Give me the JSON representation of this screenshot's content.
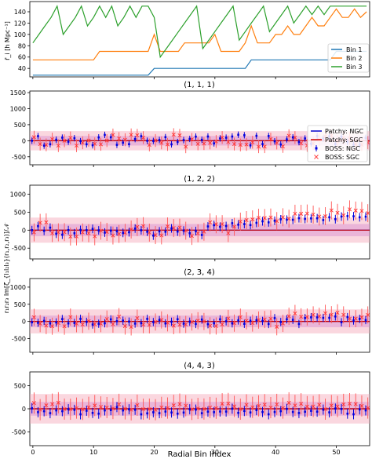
{
  "chart_data": [
    {
      "type": "line",
      "panel": "bins",
      "title": "",
      "xlabel": "",
      "ylabel": "r̄_i [h Mpc⁻¹]",
      "xlim": [
        -0.5,
        55.5
      ],
      "ylim": [
        25,
        158
      ],
      "yticks": [
        40,
        60,
        80,
        100,
        120,
        140
      ],
      "xticks": [
        0,
        10,
        20,
        30,
        40,
        50
      ],
      "show_xticklabels": false,
      "grid": false,
      "legend_position": "bottom-right",
      "x": [
        0,
        1,
        2,
        3,
        4,
        5,
        6,
        7,
        8,
        9,
        10,
        11,
        12,
        13,
        14,
        15,
        16,
        17,
        18,
        19,
        20,
        21,
        22,
        23,
        24,
        25,
        26,
        27,
        28,
        29,
        30,
        31,
        32,
        33,
        34,
        35,
        36,
        37,
        38,
        39,
        40,
        41,
        42,
        43,
        44,
        45,
        46,
        47,
        48,
        49,
        50,
        51,
        52,
        53,
        54,
        55
      ],
      "series": [
        {
          "name": "Bin 1",
          "color": "#1f77b4",
          "values": [
            28,
            28,
            28,
            28,
            28,
            28,
            28,
            28,
            28,
            28,
            28,
            28,
            28,
            28,
            28,
            28,
            28,
            28,
            28,
            28,
            40,
            40,
            40,
            40,
            40,
            40,
            40,
            40,
            40,
            40,
            40,
            40,
            40,
            40,
            40,
            40,
            55,
            55,
            55,
            55,
            55,
            55,
            55,
            55,
            55,
            55,
            55,
            55,
            55,
            55,
            70,
            70,
            70,
            70,
            70,
            70
          ]
        },
        {
          "name": "Bin 2",
          "color": "#ff7f0e",
          "values": [
            55,
            55,
            55,
            55,
            55,
            55,
            55,
            55,
            55,
            55,
            55,
            70,
            70,
            70,
            70,
            70,
            70,
            70,
            70,
            70,
            100,
            70,
            70,
            70,
            70,
            85,
            85,
            85,
            85,
            85,
            100,
            70,
            70,
            70,
            70,
            85,
            115,
            85,
            85,
            85,
            100,
            100,
            115,
            100,
            100,
            115,
            130,
            115,
            115,
            130,
            145,
            130,
            130,
            145,
            130,
            140
          ]
        },
        {
          "name": "Bin 3",
          "color": "#2ca02c",
          "values": [
            85,
            100,
            115,
            130,
            150,
            100,
            115,
            130,
            150,
            115,
            130,
            150,
            130,
            150,
            115,
            130,
            150,
            130,
            150,
            150,
            130,
            60,
            75,
            90,
            105,
            120,
            135,
            150,
            75,
            90,
            105,
            120,
            135,
            150,
            90,
            105,
            120,
            135,
            150,
            105,
            120,
            135,
            150,
            120,
            135,
            150,
            135,
            150,
            135,
            150,
            150,
            150,
            150,
            150,
            150,
            150
          ]
        }
      ]
    },
    {
      "type": "errorbar",
      "panel": "multipole",
      "title": "(1, 1, 1)",
      "xlabel": "",
      "ylabel": "r₁r₂r₃ Im[ζ_{l₁l₂l₃}(r₁,r₂,r₃)]/𝒩",
      "ylim": [
        -750,
        1550
      ],
      "yticks": [
        -500,
        0,
        500,
        1000,
        1500
      ],
      "xticks": [
        0,
        10,
        20,
        30,
        40,
        50
      ],
      "show_xticklabels": false,
      "legend_position": "right",
      "legend": [
        "Patchy: NGC",
        "Patchy: SGC",
        "BOSS: NGC",
        "BOSS: SGC"
      ],
      "ngc_values": [
        0,
        142,
        -154,
        -110,
        32,
        96,
        -31,
        79,
        -13,
        -110,
        -142,
        103,
        182,
        107,
        -128,
        -61,
        -107,
        51,
        141,
        -1,
        -6,
        22,
        111,
        -113,
        -40,
        20,
        57,
        127,
        29,
        131,
        -83,
        72,
        95,
        131,
        187,
        171,
        -146,
        153,
        -104,
        146,
        -18,
        -117,
        42,
        104,
        -43,
        70,
        -93,
        147,
        65,
        135,
        -104,
        126,
        -29,
        -122,
        -139,
        89
      ],
      "ngc_errors": [
        100,
        100,
        100,
        100,
        100,
        100,
        100,
        100,
        100,
        100,
        100,
        100,
        100,
        100,
        100,
        100,
        100,
        100,
        100,
        100,
        100,
        100,
        100,
        100,
        100,
        100,
        100,
        100,
        100,
        100,
        100,
        100,
        100,
        100,
        100,
        100,
        100,
        100,
        100,
        100,
        100,
        100,
        100,
        100,
        100,
        100,
        100,
        100,
        100,
        100,
        100,
        100,
        100,
        100,
        100,
        100
      ],
      "sgc_values": [
        109,
        -105,
        -129,
        49,
        -154,
        0,
        88,
        -154,
        -64,
        9,
        -97,
        -112,
        5,
        179,
        68,
        31,
        183,
        171,
        96,
        -132,
        7,
        -67,
        -115,
        190,
        168,
        -188,
        41,
        -98,
        -90,
        -69,
        -23,
        100,
        -38,
        -103,
        -131,
        -116,
        -48,
        -187,
        -185,
        50,
        -71,
        -178,
        155,
        98,
        -80,
        -147,
        -87,
        31,
        136,
        158,
        -13,
        87,
        74,
        -106,
        -125,
        -59
      ],
      "sgc_errors": [
        200,
        200,
        200,
        200,
        200,
        200,
        200,
        200,
        200,
        200,
        200,
        200,
        200,
        200,
        200,
        200,
        200,
        200,
        200,
        200,
        200,
        200,
        200,
        200,
        200,
        200,
        200,
        200,
        200,
        200,
        200,
        200,
        200,
        200,
        200,
        200,
        200,
        200,
        200,
        200,
        200,
        200,
        200,
        200,
        200,
        200,
        200,
        200,
        200,
        200,
        200,
        200,
        200,
        200,
        200,
        200
      ],
      "band_ngc": 150,
      "band_sgc": 300
    },
    {
      "type": "errorbar",
      "panel": "multipole",
      "title": "(1, 2, 2)",
      "xlabel": "",
      "ylabel": "",
      "ylim": [
        -800,
        1250
      ],
      "yticks": [
        -500,
        0,
        500,
        1000
      ],
      "xticks": [
        0,
        10,
        20,
        30,
        40,
        50
      ],
      "show_xticklabels": false,
      "ngc_values": [
        0,
        110,
        -20,
        69,
        -99,
        -126,
        1,
        -86,
        6,
        -2,
        36,
        -7,
        -67,
        -16,
        -29,
        -76,
        -58,
        45,
        -4,
        -44,
        -150,
        -34,
        -43,
        49,
        -39,
        -11,
        -84,
        -26,
        -133,
        103,
        140,
        93,
        115,
        193,
        153,
        169,
        143,
        203,
        246,
        216,
        262,
        301,
        293,
        288,
        333,
        312,
        327,
        331,
        280,
        358,
        304,
        378,
        391,
        386,
        358,
        376
      ],
      "ngc_errors": [
        120,
        120,
        120,
        120,
        120,
        120,
        120,
        120,
        120,
        120,
        120,
        120,
        120,
        120,
        120,
        120,
        120,
        120,
        120,
        120,
        120,
        120,
        120,
        120,
        120,
        120,
        120,
        120,
        120,
        120,
        120,
        120,
        120,
        120,
        120,
        120,
        120,
        120,
        120,
        120,
        120,
        120,
        120,
        120,
        120,
        120,
        120,
        120,
        120,
        120,
        120,
        120,
        120,
        120,
        120,
        120
      ],
      "sgc_values": [
        -62,
        203,
        217,
        -82,
        -60,
        -55,
        -178,
        -175,
        -64,
        -86,
        -170,
        -17,
        -48,
        -148,
        -106,
        -73,
        17,
        87,
        112,
        -69,
        -137,
        -146,
        104,
        59,
        71,
        -15,
        -161,
        -88,
        -43,
        217,
        164,
        168,
        -82,
        93,
        237,
        280,
        299,
        343,
        337,
        352,
        253,
        359,
        317,
        456,
        455,
        463,
        432,
        378,
        389,
        550,
        481,
        414,
        578,
        545,
        534,
        473
      ],
      "sgc_errors": [
        250,
        250,
        250,
        250,
        250,
        250,
        250,
        250,
        250,
        250,
        250,
        250,
        250,
        250,
        250,
        250,
        250,
        250,
        250,
        250,
        250,
        250,
        250,
        250,
        250,
        250,
        250,
        250,
        250,
        250,
        250,
        250,
        250,
        250,
        250,
        250,
        250,
        250,
        250,
        250,
        250,
        250,
        250,
        250,
        250,
        250,
        250,
        250,
        250,
        250,
        250,
        250,
        250,
        250,
        250,
        250
      ],
      "band_ngc": 170,
      "band_sgc": 350
    },
    {
      "type": "errorbar",
      "panel": "multipole",
      "title": "(2, 3, 4)",
      "xlabel": "",
      "ylabel": "",
      "ylim": [
        -900,
        1250
      ],
      "yticks": [
        -500,
        0,
        500,
        1000
      ],
      "xticks": [
        0,
        10,
        20,
        30,
        40,
        50
      ],
      "show_xticklabels": false,
      "ngc_values": [
        -26,
        -41,
        16,
        -57,
        -30,
        69,
        -58,
        -44,
        74,
        -12,
        -90,
        -67,
        -54,
        60,
        7,
        23,
        -5,
        -63,
        -52,
        74,
        -18,
        40,
        -58,
        -9,
        64,
        -65,
        -8,
        -74,
        54,
        -81,
        -52,
        61,
        3,
        -56,
        29,
        -70,
        20,
        34,
        15,
        -74,
        97,
        -16,
        62,
        47,
        -74,
        99,
        119,
        118,
        103,
        104,
        145,
        -25,
        126,
        26,
        74,
        40
      ],
      "ngc_errors": [
        120,
        120,
        120,
        120,
        120,
        120,
        120,
        120,
        120,
        120,
        120,
        120,
        120,
        120,
        120,
        120,
        120,
        120,
        120,
        120,
        120,
        120,
        120,
        120,
        120,
        120,
        120,
        120,
        120,
        120,
        120,
        120,
        120,
        120,
        120,
        120,
        120,
        120,
        120,
        120,
        120,
        120,
        120,
        120,
        120,
        120,
        120,
        120,
        120,
        120,
        120,
        120,
        120,
        120,
        120,
        120
      ],
      "sgc_values": [
        120,
        -64,
        -121,
        -140,
        -48,
        -140,
        127,
        -66,
        -87,
        6,
        -81,
        -64,
        69,
        -79,
        139,
        -135,
        -159,
        95,
        -94,
        -100,
        -17,
        42,
        -40,
        -124,
        -93,
        -88,
        -16,
        20,
        -2,
        -128,
        -133,
        -88,
        87,
        -50,
        125,
        17,
        -47,
        40,
        57,
        75,
        -155,
        -57,
        151,
        233,
        134,
        128,
        191,
        149,
        237,
        196,
        252,
        191,
        80,
        81,
        121,
        189
      ],
      "sgc_errors": [
        250,
        250,
        250,
        250,
        250,
        250,
        250,
        250,
        250,
        250,
        250,
        250,
        250,
        250,
        250,
        250,
        250,
        250,
        250,
        250,
        250,
        250,
        250,
        250,
        250,
        250,
        250,
        250,
        250,
        250,
        250,
        250,
        250,
        250,
        250,
        250,
        250,
        250,
        250,
        250,
        250,
        250,
        250,
        250,
        250,
        250,
        250,
        250,
        250,
        250,
        250,
        250,
        250,
        250,
        250,
        250
      ],
      "band_ngc": 170,
      "band_sgc": 350
    },
    {
      "type": "errorbar",
      "panel": "multipole",
      "title": "(4, 4, 3)",
      "xlabel": "Radial Bin Index",
      "ylabel": "",
      "ylim": [
        -800,
        800
      ],
      "yticks": [
        -500,
        0,
        500
      ],
      "xticks": [
        0,
        10,
        20,
        30,
        40,
        50
      ],
      "show_xticklabels": true,
      "ngc_values": [
        11,
        -74,
        -53,
        -95,
        -35,
        -52,
        -9,
        -23,
        -120,
        -42,
        -90,
        -106,
        -35,
        -29,
        37,
        -36,
        -11,
        -22,
        -120,
        -99,
        -76,
        -95,
        -60,
        -81,
        -106,
        -82,
        -11,
        -18,
        -96,
        -62,
        -74,
        -59,
        -60,
        2,
        -88,
        -48,
        -80,
        -29,
        -70,
        -119,
        -70,
        -52,
        -3,
        -70,
        -92,
        -64,
        -44,
        -62,
        -18,
        -78,
        5,
        -4,
        -106,
        -119,
        -14,
        -35
      ],
      "ngc_errors": [
        110,
        110,
        110,
        110,
        110,
        110,
        110,
        110,
        110,
        110,
        110,
        110,
        110,
        110,
        110,
        110,
        110,
        110,
        110,
        110,
        110,
        110,
        110,
        110,
        110,
        110,
        110,
        110,
        110,
        110,
        110,
        110,
        110,
        110,
        110,
        110,
        110,
        110,
        110,
        110,
        110,
        110,
        110,
        110,
        110,
        110,
        110,
        110,
        110,
        110,
        110,
        110,
        110,
        110,
        110,
        110
      ],
      "sgc_values": [
        125,
        -19,
        75,
        101,
        131,
        -7,
        -9,
        15,
        -13,
        32,
        71,
        40,
        26,
        6,
        96,
        -1,
        -22,
        78,
        -8,
        -7,
        -20,
        30,
        16,
        74,
        102,
        67,
        -13,
        7,
        -5,
        27,
        12,
        109,
        115,
        52,
        -8,
        84,
        32,
        64,
        89,
        26,
        95,
        15,
        129,
        73,
        109,
        48,
        51,
        86,
        -8,
        71,
        50,
        96,
        110,
        103,
        62,
        16
      ],
      "sgc_errors": [
        230,
        230,
        230,
        230,
        230,
        230,
        230,
        230,
        230,
        230,
        230,
        230,
        230,
        230,
        230,
        230,
        230,
        230,
        230,
        230,
        230,
        230,
        230,
        230,
        230,
        230,
        230,
        230,
        230,
        230,
        230,
        230,
        230,
        230,
        230,
        230,
        230,
        230,
        230,
        230,
        230,
        230,
        230,
        230,
        230,
        230,
        230,
        230,
        230,
        230,
        230,
        230,
        230,
        230,
        230,
        230
      ],
      "band_ngc": 150,
      "band_sgc": 320
    }
  ]
}
